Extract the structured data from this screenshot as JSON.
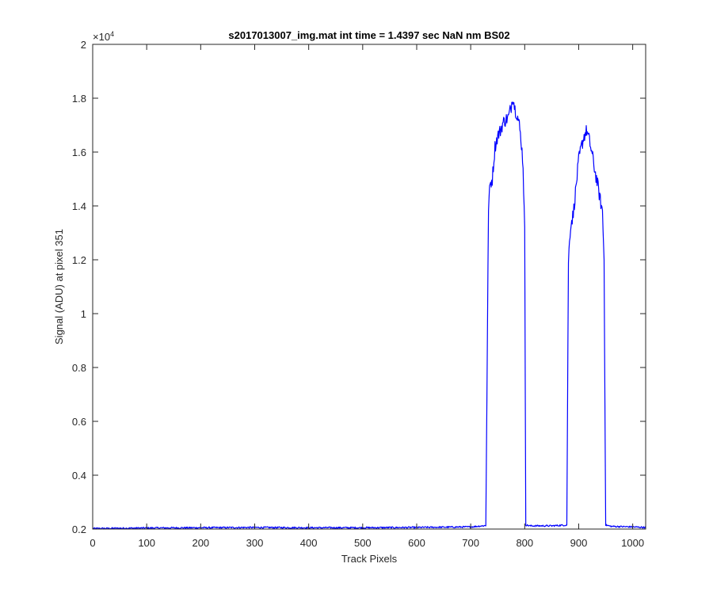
{
  "chart_data": {
    "type": "line",
    "title": "s2017013007_img.mat int time = 1.4397 sec  NaN nm BS02",
    "xlabel": "Track Pixels",
    "ylabel": "Signal (ADU) at pixel 351",
    "y_exponent_label": "×10",
    "y_exponent_power": "4",
    "xlim": [
      0,
      1024
    ],
    "ylim": [
      0.2,
      2.0
    ],
    "x_ticks": [
      0,
      100,
      200,
      300,
      400,
      500,
      600,
      700,
      800,
      900,
      1000
    ],
    "x_tick_labels": [
      "0",
      "100",
      "200",
      "300",
      "400",
      "500",
      "600",
      "700",
      "800",
      "900",
      "1000"
    ],
    "y_ticks": [
      0.2,
      0.4,
      0.6,
      0.8,
      1.0,
      1.2,
      1.4,
      1.6,
      1.8,
      2.0
    ],
    "y_tick_labels": [
      "0.2",
      "0.4",
      "0.6",
      "0.8",
      "1",
      "1.2",
      "1.4",
      "1.6",
      "1.8",
      "2"
    ],
    "grid": false,
    "series": [
      {
        "color": "#0000ff",
        "x": [
          0,
          100,
          200,
          300,
          400,
          500,
          600,
          700,
          728,
          733,
          736,
          740,
          745,
          750,
          755,
          760,
          765,
          770,
          775,
          778,
          782,
          786,
          790,
          794,
          797,
          800,
          802,
          810,
          850,
          878,
          881,
          885,
          890,
          895,
          900,
          905,
          910,
          915,
          920,
          925,
          930,
          935,
          940,
          944,
          947,
          950,
          960,
          1000,
          1024
        ],
        "y": [
          0.202,
          0.204,
          0.205,
          0.206,
          0.205,
          0.205,
          0.206,
          0.208,
          0.213,
          1.4,
          1.48,
          1.5,
          1.62,
          1.66,
          1.68,
          1.71,
          1.72,
          1.73,
          1.77,
          1.81,
          1.76,
          1.74,
          1.7,
          1.63,
          1.55,
          1.3,
          0.215,
          0.212,
          0.212,
          0.215,
          1.2,
          1.33,
          1.37,
          1.47,
          1.57,
          1.62,
          1.66,
          1.68,
          1.64,
          1.59,
          1.53,
          1.48,
          1.42,
          1.38,
          1.2,
          0.215,
          0.21,
          0.208,
          0.206
        ]
      }
    ]
  }
}
